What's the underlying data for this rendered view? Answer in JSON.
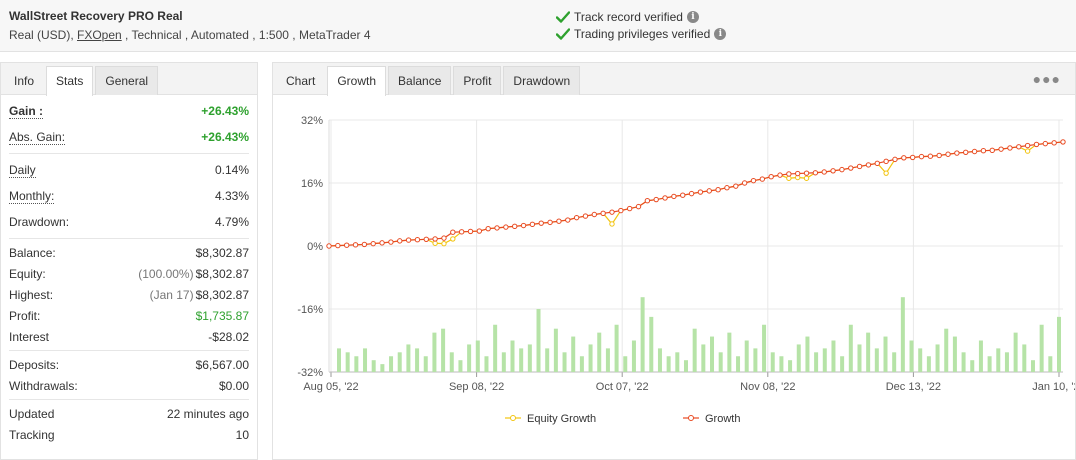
{
  "header": {
    "account_name": "WallStreet Recovery PRO Real",
    "info_prefix": "Real (USD), ",
    "broker": "FXOpen",
    "info_suffix": " , Technical , Automated , 1:500 , MetaTrader 4",
    "verify1": "Track record verified",
    "verify2": "Trading privileges verified",
    "check_color": "#2ea12e"
  },
  "left_tabs": [
    "Info",
    "Stats",
    "General"
  ],
  "stats": {
    "gain": {
      "label": "Gain :",
      "value": "+26.43%"
    },
    "abs_gain": {
      "label": "Abs. Gain:",
      "value": "+26.43%"
    },
    "daily": {
      "label": "Daily",
      "value": "0.14%"
    },
    "monthly": {
      "label": "Monthly:",
      "value": "4.33%"
    },
    "drawdown": {
      "label": "Drawdown:",
      "value": "4.79%"
    },
    "balance": {
      "label": "Balance:",
      "value": "$8,302.87"
    },
    "equity": {
      "label": "Equity:",
      "sub": "(100.00%)",
      "value": "$8,302.87"
    },
    "highest": {
      "label": "Highest:",
      "sub": "(Jan 17)",
      "value": "$8,302.87"
    },
    "profit": {
      "label": "Profit:",
      "value": "$1,735.87"
    },
    "interest": {
      "label": "Interest",
      "value": "-$28.02"
    },
    "deposits": {
      "label": "Deposits:",
      "value": "$6,567.00"
    },
    "withdrawals": {
      "label": "Withdrawals:",
      "value": "$0.00"
    },
    "updated": {
      "label": "Updated",
      "value": "22 minutes ago"
    },
    "tracking": {
      "label": "Tracking",
      "value": "10"
    }
  },
  "right_tabs": [
    "Chart",
    "Growth",
    "Balance",
    "Profit",
    "Drawdown"
  ],
  "menu_icon": "more-dots-icon",
  "chart_data": {
    "type": "line",
    "y_ticks": [
      "32%",
      "16%",
      "0%",
      "-16%",
      "-32%"
    ],
    "ylim": [
      -32,
      32
    ],
    "x_ticks": [
      "Aug 05, '22",
      "Sep 08, '22",
      "Oct 07, '22",
      "Nov 08, '22",
      "Dec 13, '22",
      "Jan 10, '23"
    ],
    "legend": [
      "Equity Growth",
      "Growth"
    ],
    "legend_placement": "bottom-center",
    "colors": {
      "equity": "#f2c40f",
      "growth": "#e84a22",
      "bars": "#b6e3a7",
      "grid": "#e8e8e8"
    },
    "growth": [
      0.0,
      0.1,
      0.2,
      0.3,
      0.4,
      0.6,
      0.8,
      1.0,
      1.3,
      1.5,
      1.6,
      1.7,
      1.8,
      2.0,
      3.5,
      3.6,
      3.7,
      3.8,
      4.4,
      4.6,
      4.8,
      5.0,
      5.2,
      5.5,
      5.8,
      6.0,
      6.3,
      6.6,
      7.2,
      7.6,
      8.0,
      8.3,
      8.6,
      9.0,
      9.5,
      10.0,
      11.5,
      11.8,
      12.2,
      12.6,
      12.9,
      13.3,
      13.7,
      14.0,
      14.3,
      14.8,
      15.2,
      16.0,
      16.6,
      17.0,
      17.6,
      18.0,
      18.3,
      18.4,
      18.5,
      18.6,
      18.8,
      19.1,
      19.4,
      19.8,
      20.2,
      20.6,
      21.0,
      21.5,
      22.0,
      22.4,
      22.5,
      22.7,
      22.8,
      23.0,
      23.3,
      23.6,
      23.8,
      24.0,
      24.2,
      24.3,
      24.6,
      24.9,
      25.2,
      25.5,
      25.8,
      26.0,
      26.2,
      26.43
    ],
    "equity": [
      0.0,
      0.1,
      0.2,
      0.3,
      0.4,
      0.6,
      0.8,
      1.0,
      1.3,
      1.5,
      1.6,
      1.7,
      0.7,
      0.6,
      1.8,
      3.6,
      3.7,
      3.8,
      4.4,
      4.6,
      4.8,
      5.0,
      5.2,
      5.5,
      5.8,
      6.0,
      6.3,
      6.6,
      7.2,
      7.6,
      8.0,
      8.3,
      5.6,
      9.0,
      9.5,
      10.0,
      11.5,
      11.8,
      12.2,
      12.6,
      12.9,
      13.3,
      13.7,
      14.0,
      14.3,
      14.8,
      15.2,
      16.0,
      16.6,
      17.0,
      17.6,
      18.0,
      17.2,
      17.4,
      17.2,
      18.6,
      18.8,
      19.1,
      19.4,
      19.8,
      20.2,
      20.6,
      21.0,
      18.5,
      22.0,
      22.4,
      22.5,
      22.7,
      22.8,
      23.0,
      23.3,
      23.6,
      23.8,
      24.0,
      24.2,
      24.3,
      24.6,
      24.9,
      25.2,
      24.1,
      25.8,
      26.0,
      26.2,
      26.43
    ],
    "bars": [
      6,
      5,
      4,
      6,
      3,
      2,
      4,
      5,
      7,
      6,
      4,
      10,
      11,
      5,
      3,
      7,
      8,
      4,
      12,
      5,
      8,
      6,
      7,
      16,
      6,
      11,
      5,
      9,
      4,
      7,
      10,
      6,
      12,
      4,
      8,
      19,
      14,
      6,
      4,
      5,
      3,
      11,
      7,
      9,
      5,
      10,
      4,
      8,
      6,
      12,
      5,
      4,
      3,
      7,
      9,
      5,
      6,
      8,
      4,
      12,
      7,
      10,
      6,
      9,
      5,
      19,
      8,
      6,
      4,
      7,
      11,
      9,
      5,
      3,
      8,
      4,
      6,
      5,
      10,
      7,
      3,
      12,
      4,
      14
    ]
  }
}
